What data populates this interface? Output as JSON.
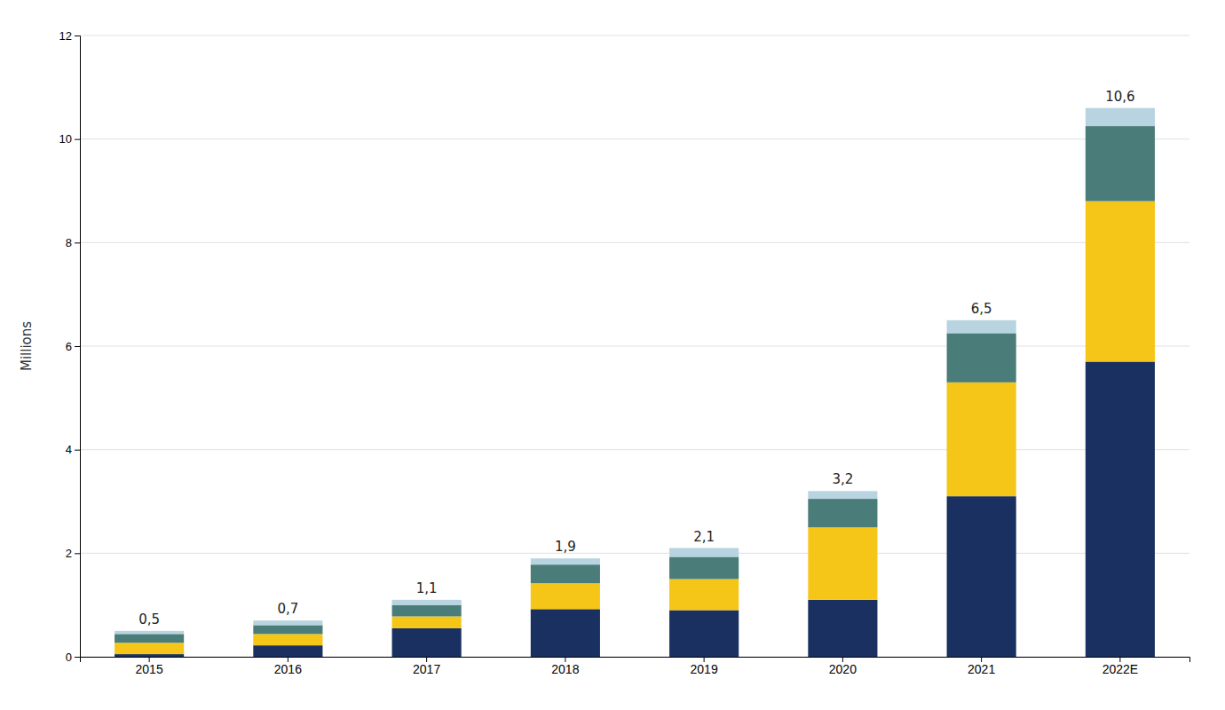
{
  "chart_data": {
    "type": "bar",
    "stacked": true,
    "grid": true,
    "categories": [
      "2015",
      "2016",
      "2017",
      "2018",
      "2019",
      "2020",
      "2021",
      "2022E"
    ],
    "series": [
      {
        "color": "#1a3060",
        "values": [
          0.05,
          0.22,
          0.55,
          0.92,
          0.9,
          1.1,
          3.1,
          5.7
        ]
      },
      {
        "color": "#f5c518",
        "values": [
          0.22,
          0.22,
          0.23,
          0.5,
          0.6,
          1.4,
          2.2,
          3.1
        ]
      },
      {
        "color": "#4a7c7a",
        "values": [
          0.17,
          0.17,
          0.22,
          0.36,
          0.43,
          0.55,
          0.95,
          1.45
        ]
      },
      {
        "color": "#b8d4e0",
        "values": [
          0.06,
          0.09,
          0.1,
          0.12,
          0.17,
          0.15,
          0.25,
          0.35
        ]
      }
    ],
    "totals": {
      "values": [
        0.5,
        0.7,
        1.1,
        1.9,
        2.1,
        3.2,
        6.5,
        10.6
      ],
      "value_labels": [
        "0,5",
        "0,7",
        "1,1",
        "1,9",
        "2,1",
        "3,2",
        "6,5",
        "10,6"
      ]
    },
    "ylabel": "Millions",
    "ylim": [
      0,
      12
    ],
    "yticks": [
      0,
      2,
      4,
      6,
      8,
      10,
      12
    ]
  }
}
